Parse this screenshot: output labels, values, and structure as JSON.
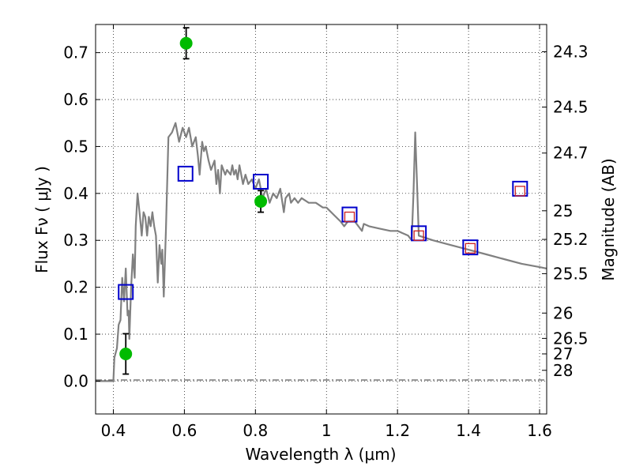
{
  "chart_data": {
    "type": "scatter",
    "xlabel": "Wavelength  λ (μm)",
    "ylabel": "Flux  Fν  ( μJy )",
    "ylabel_right": "Magnitude (AB)",
    "xlim": [
      0.35,
      1.62
    ],
    "ylim": [
      -0.07,
      0.76
    ],
    "grid": true,
    "x_ticks": [
      {
        "value": 0.4,
        "label": "0.4"
      },
      {
        "value": 0.6,
        "label": "0.6"
      },
      {
        "value": 0.8,
        "label": "0.8"
      },
      {
        "value": 1.0,
        "label": "1"
      },
      {
        "value": 1.2,
        "label": "1.2"
      },
      {
        "value": 1.4,
        "label": "1.4"
      },
      {
        "value": 1.6,
        "label": "1.6"
      }
    ],
    "y_ticks": [
      {
        "value": 0.0,
        "label": "0.0"
      },
      {
        "value": 0.1,
        "label": "0.1"
      },
      {
        "value": 0.2,
        "label": "0.2"
      },
      {
        "value": 0.3,
        "label": "0.3"
      },
      {
        "value": 0.4,
        "label": "0.4"
      },
      {
        "value": 0.5,
        "label": "0.5"
      },
      {
        "value": 0.6,
        "label": "0.6"
      },
      {
        "value": 0.7,
        "label": "0.7"
      }
    ],
    "magnitude_ticks": [
      {
        "flux": 0.702,
        "label": "24.3"
      },
      {
        "flux": 0.584,
        "label": "24.5"
      },
      {
        "flux": 0.486,
        "label": "24.7"
      },
      {
        "flux": 0.363,
        "label": "25"
      },
      {
        "flux": 0.302,
        "label": "25.2"
      },
      {
        "flux": 0.229,
        "label": "25.5"
      },
      {
        "flux": 0.145,
        "label": "26"
      },
      {
        "flux": 0.091,
        "label": "26.5"
      },
      {
        "flux": 0.058,
        "label": "27"
      },
      {
        "flux": 0.023,
        "label": "28"
      }
    ],
    "series": [
      {
        "kind": "line",
        "color": "#808080",
        "points": [
          [
            0.35,
            0.0
          ],
          [
            0.39,
            0.0
          ],
          [
            0.4,
            0.0
          ],
          [
            0.403,
            0.05
          ],
          [
            0.41,
            0.07
          ],
          [
            0.415,
            0.12
          ],
          [
            0.42,
            0.13
          ],
          [
            0.425,
            0.22
          ],
          [
            0.43,
            0.17
          ],
          [
            0.435,
            0.24
          ],
          [
            0.44,
            0.14
          ],
          [
            0.443,
            0.15
          ],
          [
            0.445,
            0.09
          ],
          [
            0.45,
            0.2
          ],
          [
            0.455,
            0.27
          ],
          [
            0.46,
            0.22
          ],
          [
            0.463,
            0.33
          ],
          [
            0.468,
            0.4
          ],
          [
            0.475,
            0.35
          ],
          [
            0.48,
            0.31
          ],
          [
            0.485,
            0.36
          ],
          [
            0.49,
            0.35
          ],
          [
            0.495,
            0.31
          ],
          [
            0.5,
            0.35
          ],
          [
            0.505,
            0.33
          ],
          [
            0.51,
            0.36
          ],
          [
            0.515,
            0.33
          ],
          [
            0.52,
            0.31
          ],
          [
            0.525,
            0.21
          ],
          [
            0.53,
            0.29
          ],
          [
            0.535,
            0.25
          ],
          [
            0.538,
            0.28
          ],
          [
            0.542,
            0.18
          ],
          [
            0.548,
            0.32
          ],
          [
            0.555,
            0.52
          ],
          [
            0.565,
            0.53
          ],
          [
            0.575,
            0.55
          ],
          [
            0.585,
            0.51
          ],
          [
            0.595,
            0.54
          ],
          [
            0.605,
            0.52
          ],
          [
            0.613,
            0.54
          ],
          [
            0.622,
            0.5
          ],
          [
            0.632,
            0.52
          ],
          [
            0.638,
            0.48
          ],
          [
            0.643,
            0.44
          ],
          [
            0.65,
            0.51
          ],
          [
            0.655,
            0.49
          ],
          [
            0.66,
            0.5
          ],
          [
            0.668,
            0.47
          ],
          [
            0.675,
            0.45
          ],
          [
            0.685,
            0.47
          ],
          [
            0.69,
            0.42
          ],
          [
            0.695,
            0.45
          ],
          [
            0.7,
            0.4
          ],
          [
            0.705,
            0.46
          ],
          [
            0.715,
            0.44
          ],
          [
            0.72,
            0.45
          ],
          [
            0.73,
            0.44
          ],
          [
            0.735,
            0.46
          ],
          [
            0.74,
            0.44
          ],
          [
            0.745,
            0.45
          ],
          [
            0.75,
            0.43
          ],
          [
            0.755,
            0.46
          ],
          [
            0.765,
            0.42
          ],
          [
            0.772,
            0.44
          ],
          [
            0.78,
            0.42
          ],
          [
            0.79,
            0.43
          ],
          [
            0.8,
            0.41
          ],
          [
            0.81,
            0.43
          ],
          [
            0.82,
            0.39
          ],
          [
            0.83,
            0.41
          ],
          [
            0.84,
            0.38
          ],
          [
            0.85,
            0.4
          ],
          [
            0.86,
            0.39
          ],
          [
            0.87,
            0.41
          ],
          [
            0.88,
            0.36
          ],
          [
            0.885,
            0.39
          ],
          [
            0.895,
            0.4
          ],
          [
            0.9,
            0.38
          ],
          [
            0.91,
            0.39
          ],
          [
            0.92,
            0.38
          ],
          [
            0.93,
            0.39
          ],
          [
            0.95,
            0.38
          ],
          [
            0.97,
            0.38
          ],
          [
            0.99,
            0.37
          ],
          [
            1.0,
            0.37
          ],
          [
            1.02,
            0.355
          ],
          [
            1.04,
            0.34
          ],
          [
            1.05,
            0.33
          ],
          [
            1.06,
            0.34
          ],
          [
            1.08,
            0.34
          ],
          [
            1.1,
            0.32
          ],
          [
            1.105,
            0.335
          ],
          [
            1.12,
            0.33
          ],
          [
            1.15,
            0.325
          ],
          [
            1.18,
            0.32
          ],
          [
            1.2,
            0.32
          ],
          [
            1.23,
            0.31
          ],
          [
            1.24,
            0.3
          ],
          [
            1.245,
            0.4
          ],
          [
            1.25,
            0.53
          ],
          [
            1.255,
            0.42
          ],
          [
            1.26,
            0.31
          ],
          [
            1.3,
            0.3
          ],
          [
            1.35,
            0.29
          ],
          [
            1.4,
            0.28
          ],
          [
            1.45,
            0.27
          ],
          [
            1.5,
            0.26
          ],
          [
            1.55,
            0.25
          ],
          [
            1.6,
            0.243
          ],
          [
            1.62,
            0.24
          ]
        ]
      },
      {
        "kind": "markers",
        "marker": "square",
        "color": "#0000cc",
        "points": [
          [
            0.435,
            0.19
          ],
          [
            0.603,
            0.442
          ],
          [
            0.815,
            0.425
          ],
          [
            1.065,
            0.355
          ],
          [
            1.26,
            0.315
          ],
          [
            1.405,
            0.285
          ],
          [
            1.545,
            0.41
          ]
        ]
      },
      {
        "kind": "markers",
        "marker": "small-square",
        "color": "#cc2222",
        "points": [
          [
            1.065,
            0.35
          ],
          [
            1.26,
            0.31
          ],
          [
            1.405,
            0.283
          ],
          [
            1.545,
            0.405
          ]
        ]
      },
      {
        "kind": "markers",
        "marker": "circle",
        "color": "#00bb00",
        "points": [
          {
            "x": 0.435,
            "y": 0.058,
            "err": 0.043
          },
          {
            "x": 0.605,
            "y": 0.72,
            "err": 0.033
          },
          {
            "x": 0.815,
            "y": 0.383,
            "err": 0.023
          }
        ]
      }
    ]
  }
}
